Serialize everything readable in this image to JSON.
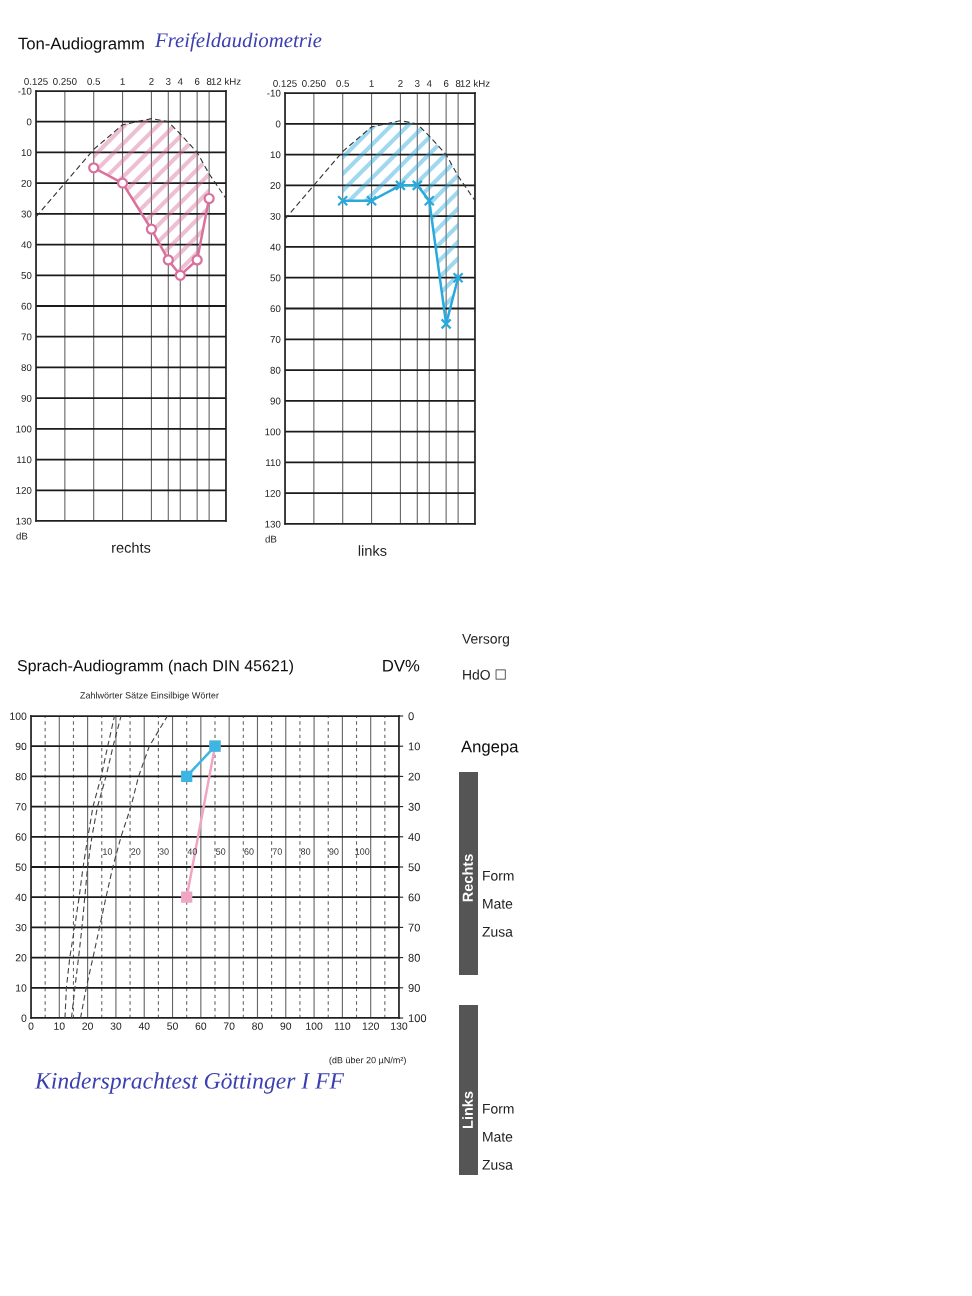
{
  "chart_data": [
    {
      "type": "line",
      "title": "Ton-Audiogramm",
      "subtitle": "Freifeldaudiometrie",
      "xlabel": "rechts",
      "ylabel": "dB",
      "log": "x",
      "xlim": [
        0.125,
        12
      ],
      "xticks": [
        0.125,
        {
          "value": 0.25,
          "label": "0.250"
        },
        0.5,
        1,
        2,
        3,
        4,
        6,
        8,
        {
          "value": 12,
          "label": "12 kHz"
        }
      ],
      "ylim": [
        130,
        -10
      ],
      "yticks": [
        -10,
        0,
        10,
        20,
        30,
        40,
        50,
        60,
        70,
        80,
        90,
        100,
        110,
        120,
        130
      ],
      "grid": true,
      "series": [
        {
          "type": "line",
          "color": "#333333",
          "line_style": "dashed",
          "marker": "none",
          "x": [
            0.125,
            0.25,
            0.5,
            1,
            2,
            3,
            4,
            6,
            8,
            12
          ],
          "values": [
            31,
            20,
            9,
            1,
            -1,
            0,
            4,
            10,
            17,
            25
          ]
        },
        {
          "type": "line",
          "color": "#d9719c",
          "line_style": "solid",
          "marker": "circle",
          "x": [
            0.5,
            1,
            2,
            3,
            4,
            6,
            8
          ],
          "values": [
            15,
            20,
            35,
            45,
            50,
            45,
            25
          ],
          "lower": [
            9,
            1,
            -1,
            0,
            4,
            10,
            17
          ],
          "upper": [
            15,
            20,
            35,
            45,
            50,
            45,
            25
          ]
        }
      ]
    },
    {
      "type": "line",
      "xlabel": "links",
      "ylabel": "dB",
      "log": "x",
      "xlim": [
        0.125,
        12
      ],
      "xticks": [
        0.125,
        {
          "value": 0.25,
          "label": "0.250"
        },
        0.5,
        1,
        2,
        3,
        4,
        6,
        8,
        {
          "value": 12,
          "label": "12 kHz"
        }
      ],
      "ylim": [
        130,
        -10
      ],
      "yticks": [
        -10,
        0,
        10,
        20,
        30,
        40,
        50,
        60,
        70,
        80,
        90,
        100,
        110,
        120,
        130
      ],
      "grid": true,
      "series": [
        {
          "type": "line",
          "color": "#333333",
          "line_style": "dashed",
          "marker": "none",
          "x": [
            0.125,
            0.25,
            0.5,
            1,
            2,
            3,
            4,
            6,
            8,
            12
          ],
          "values": [
            31,
            20,
            9,
            1,
            -1,
            0,
            4,
            10,
            17,
            25
          ]
        },
        {
          "type": "line",
          "color": "#2aa9dc",
          "line_style": "solid",
          "marker": "cross",
          "x": [
            0.5,
            1,
            2,
            3,
            4,
            6,
            8
          ],
          "values": [
            25,
            25,
            20,
            20,
            25,
            65,
            50
          ],
          "lower": [
            9,
            1,
            -1,
            0,
            4,
            10,
            17
          ],
          "upper": [
            25,
            25,
            20,
            20,
            25,
            65,
            50
          ]
        }
      ]
    },
    {
      "type": "line",
      "title": "Sprach-Audiogramm (nach DIN 45621)",
      "xlabel": "(dB über 20 µN/m²)",
      "y2label": "DV%",
      "annotations": [
        "Zahlwörter Sätze Einsilbige Wörter",
        "Kindersprachtest Göttinger I FF"
      ],
      "xlim": [
        0,
        130
      ],
      "xticks": [
        0,
        {
          "value": 5,
          "label": null
        },
        10,
        {
          "value": 15,
          "label": null
        },
        20,
        {
          "value": 25,
          "label": null
        },
        30,
        {
          "value": 35,
          "label": null
        },
        40,
        {
          "value": 45,
          "label": null
        },
        50,
        {
          "value": 55,
          "label": null
        },
        60,
        {
          "value": 65,
          "label": null
        },
        70,
        {
          "value": 75,
          "label": null
        },
        80,
        {
          "value": 85,
          "label": null
        },
        90,
        {
          "value": 95,
          "label": null
        },
        100,
        {
          "value": 105,
          "label": null
        },
        110,
        {
          "value": 115,
          "label": null
        },
        120,
        {
          "value": 125,
          "label": null
        },
        130
      ],
      "ylim": [
        0,
        100
      ],
      "yticks": [
        0,
        10,
        20,
        30,
        40,
        50,
        60,
        70,
        80,
        90,
        100
      ],
      "y2lim": [
        100,
        0
      ],
      "y2ticks": [
        0,
        10,
        20,
        30,
        40,
        50,
        60,
        70,
        80,
        90,
        100
      ],
      "x2lim": [
        -17,
        113
      ],
      "x2ticks": [
        10,
        20,
        30,
        40,
        50,
        60,
        70,
        80,
        90,
        100
      ],
      "grid": true,
      "series": [
        {
          "type": "line",
          "color": "#444444",
          "line_style": "dashed",
          "marker": "none",
          "x": [
            12,
            12.5,
            13.7,
            15.4,
            17,
            18.4,
            20.1,
            21.9,
            24.8,
            27.1,
            29.5
          ],
          "values": [
            0,
            10,
            20,
            30,
            40,
            50,
            60,
            70,
            80,
            90,
            100
          ]
        },
        {
          "type": "line",
          "color": "#444444",
          "line_style": "dashed",
          "marker": "none",
          "x": [
            14.3,
            15.5,
            16.8,
            18,
            19,
            20,
            21.5,
            23.5,
            26.5,
            29,
            31.8
          ],
          "values": [
            0,
            10,
            20,
            30,
            40,
            50,
            60,
            70,
            80,
            90,
            100
          ]
        },
        {
          "type": "line",
          "color": "#444444",
          "line_style": "dashed",
          "marker": "none",
          "x": [
            17.5,
            19.5,
            21.9,
            24.2,
            26.5,
            28.9,
            31.8,
            35.3,
            38,
            41.8,
            48.2
          ],
          "values": [
            0,
            10,
            20,
            30,
            40,
            50,
            60,
            70,
            80,
            90,
            100
          ]
        },
        {
          "type": "line",
          "color": "#f0a6c3",
          "line_style": "solid",
          "marker": "square",
          "x": [
            55,
            65
          ],
          "values": [
            40,
            90
          ]
        },
        {
          "type": "line",
          "color": "#3cb6e3",
          "line_style": "solid",
          "marker": "square",
          "x": [
            55,
            65
          ],
          "values": [
            80,
            90
          ]
        }
      ]
    },
    {
      "type": "other",
      "annotations": [
        "Versorg",
        "HdO ☐",
        "Angepa",
        "Rechts",
        "Form",
        "Mate",
        "Zusa",
        "Links",
        "Form",
        "Mate",
        "Zusa"
      ]
    }
  ]
}
